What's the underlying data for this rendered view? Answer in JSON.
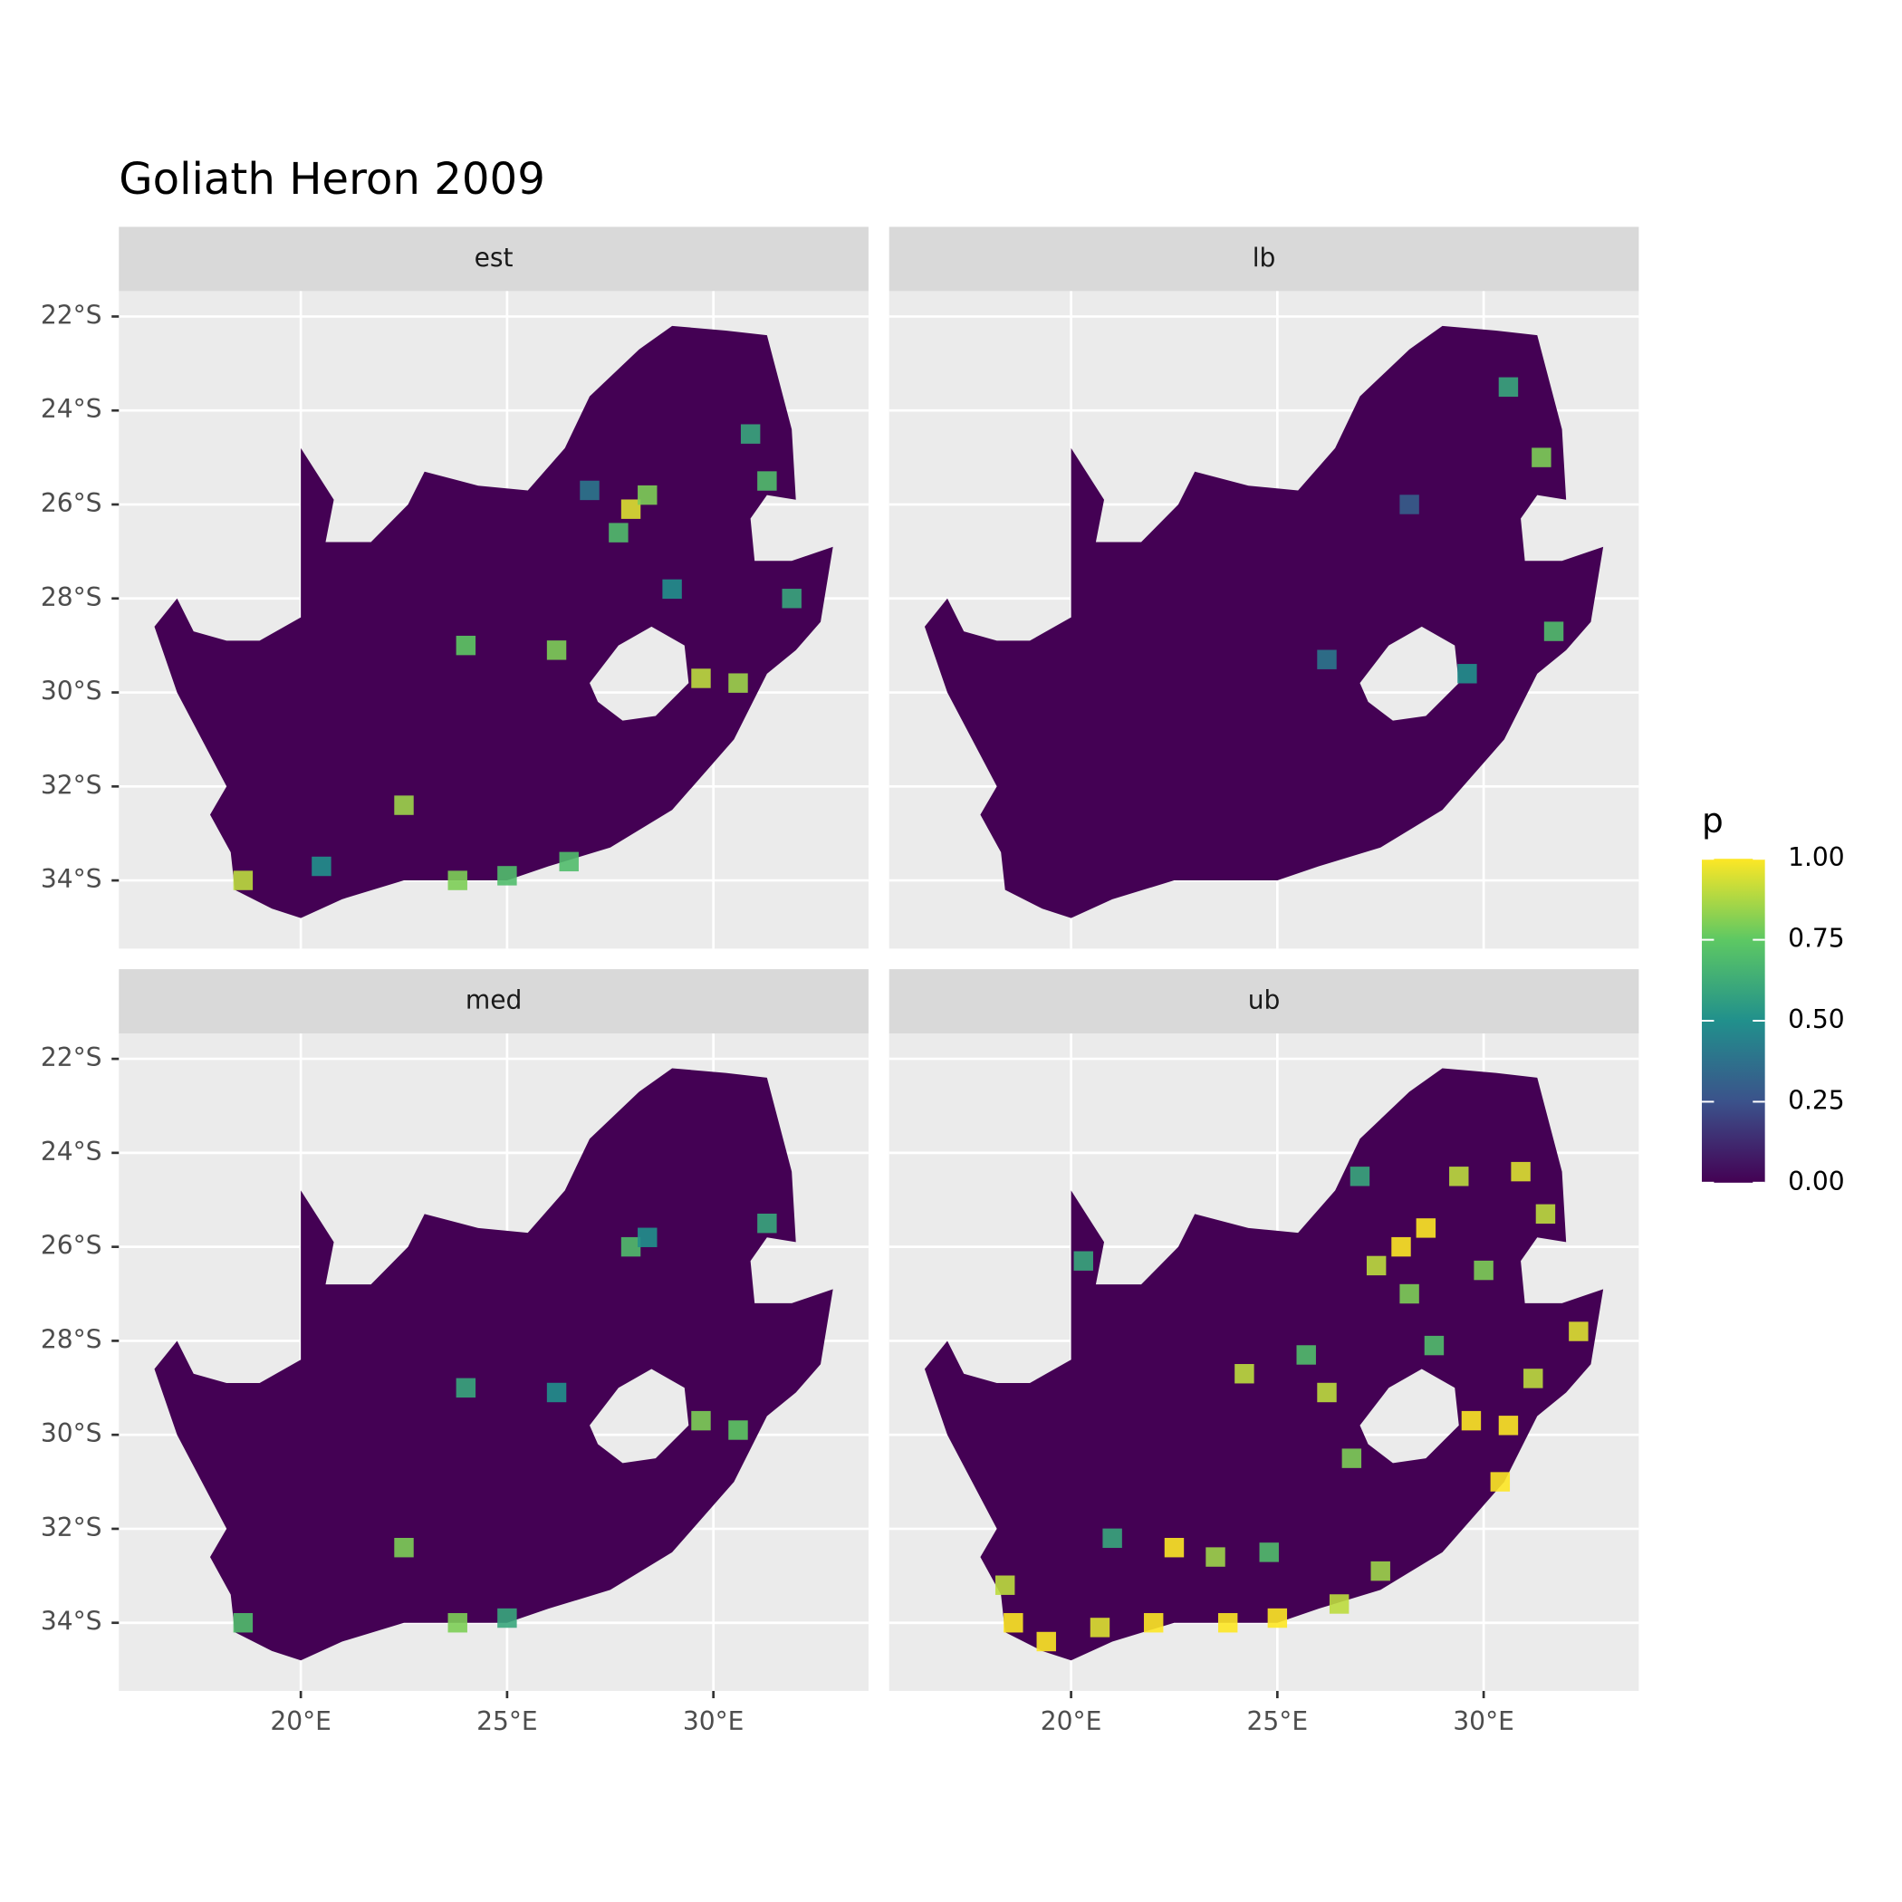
{
  "chart_data": {
    "type": "raster",
    "title": "Goliath Heron 2009",
    "xlim": [
      15.59,
      33.76
    ],
    "ylim": [
      -35.45,
      -21.46
    ],
    "xticks": [
      {
        "value": 20,
        "label": "20°E"
      },
      {
        "value": 25,
        "label": "25°E"
      },
      {
        "value": 30,
        "label": "30°E"
      }
    ],
    "yticks": [
      {
        "value": -22,
        "label": "22°S"
      },
      {
        "value": -24,
        "label": "24°S"
      },
      {
        "value": -26,
        "label": "26°S"
      },
      {
        "value": -28,
        "label": "28°S"
      },
      {
        "value": -30,
        "label": "30°S"
      },
      {
        "value": -32,
        "label": "32°S"
      },
      {
        "value": -34,
        "label": "34°S"
      }
    ],
    "grid": true,
    "facets": [
      {
        "label": "est",
        "points": [
          {
            "lon": 28.0,
            "lat": -26.1,
            "p": 0.95
          },
          {
            "lon": 28.4,
            "lat": -25.8,
            "p": 0.8
          },
          {
            "lon": 27.7,
            "lat": -26.6,
            "p": 0.7
          },
          {
            "lon": 29.7,
            "lat": -29.7,
            "p": 0.9
          },
          {
            "lon": 30.6,
            "lat": -29.8,
            "p": 0.85
          },
          {
            "lon": 26.2,
            "lat": -29.1,
            "p": 0.8
          },
          {
            "lon": 22.5,
            "lat": -32.4,
            "p": 0.85
          },
          {
            "lon": 18.6,
            "lat": -34.0,
            "p": 0.9
          },
          {
            "lon": 23.8,
            "lat": -34.0,
            "p": 0.8
          },
          {
            "lon": 31.3,
            "lat": -25.5,
            "p": 0.7
          },
          {
            "lon": 30.9,
            "lat": -24.5,
            "p": 0.6
          },
          {
            "lon": 25.0,
            "lat": -33.9,
            "p": 0.7
          },
          {
            "lon": 27.0,
            "lat": -25.7,
            "p": 0.4
          },
          {
            "lon": 24.0,
            "lat": -29.0,
            "p": 0.75
          },
          {
            "lon": 31.9,
            "lat": -28.0,
            "p": 0.6
          },
          {
            "lon": 29.0,
            "lat": -27.8,
            "p": 0.5
          },
          {
            "lon": 20.5,
            "lat": -33.7,
            "p": 0.5
          },
          {
            "lon": 26.5,
            "lat": -33.6,
            "p": 0.7
          }
        ]
      },
      {
        "label": "lb",
        "points": [
          {
            "lon": 28.2,
            "lat": -26.0,
            "p": 0.3
          },
          {
            "lon": 30.6,
            "lat": -23.5,
            "p": 0.6
          },
          {
            "lon": 31.7,
            "lat": -28.7,
            "p": 0.7
          },
          {
            "lon": 31.4,
            "lat": -25.0,
            "p": 0.8
          },
          {
            "lon": 26.2,
            "lat": -29.3,
            "p": 0.4
          },
          {
            "lon": 29.6,
            "lat": -29.6,
            "p": 0.5
          }
        ]
      },
      {
        "label": "med",
        "points": [
          {
            "lon": 28.0,
            "lat": -26.0,
            "p": 0.7
          },
          {
            "lon": 28.4,
            "lat": -25.8,
            "p": 0.5
          },
          {
            "lon": 29.7,
            "lat": -29.7,
            "p": 0.8
          },
          {
            "lon": 30.6,
            "lat": -29.9,
            "p": 0.75
          },
          {
            "lon": 26.2,
            "lat": -29.1,
            "p": 0.5
          },
          {
            "lon": 22.5,
            "lat": -32.4,
            "p": 0.8
          },
          {
            "lon": 18.6,
            "lat": -34.0,
            "p": 0.7
          },
          {
            "lon": 23.8,
            "lat": -34.0,
            "p": 0.8
          },
          {
            "lon": 31.3,
            "lat": -25.5,
            "p": 0.6
          },
          {
            "lon": 25.0,
            "lat": -33.9,
            "p": 0.6
          },
          {
            "lon": 24.0,
            "lat": -29.0,
            "p": 0.6
          }
        ]
      },
      {
        "label": "ub",
        "points": [
          {
            "lon": 28.0,
            "lat": -26.0,
            "p": 1.0
          },
          {
            "lon": 28.6,
            "lat": -25.6,
            "p": 1.0
          },
          {
            "lon": 27.4,
            "lat": -26.4,
            "p": 0.9
          },
          {
            "lon": 28.2,
            "lat": -27.0,
            "p": 0.8
          },
          {
            "lon": 29.4,
            "lat": -24.5,
            "p": 0.9
          },
          {
            "lon": 30.9,
            "lat": -24.4,
            "p": 0.95
          },
          {
            "lon": 31.5,
            "lat": -25.3,
            "p": 0.9
          },
          {
            "lon": 29.7,
            "lat": -29.7,
            "p": 1.0
          },
          {
            "lon": 30.6,
            "lat": -29.8,
            "p": 1.0
          },
          {
            "lon": 31.2,
            "lat": -28.8,
            "p": 0.9
          },
          {
            "lon": 32.3,
            "lat": -27.8,
            "p": 0.95
          },
          {
            "lon": 30.4,
            "lat": -31.0,
            "p": 1.0
          },
          {
            "lon": 26.2,
            "lat": -29.1,
            "p": 0.9
          },
          {
            "lon": 25.7,
            "lat": -28.3,
            "p": 0.7
          },
          {
            "lon": 26.8,
            "lat": -30.5,
            "p": 0.8
          },
          {
            "lon": 22.5,
            "lat": -32.4,
            "p": 1.0
          },
          {
            "lon": 23.5,
            "lat": -32.6,
            "p": 0.85
          },
          {
            "lon": 18.6,
            "lat": -34.0,
            "p": 1.0
          },
          {
            "lon": 18.4,
            "lat": -33.2,
            "p": 0.9
          },
          {
            "lon": 19.4,
            "lat": -34.4,
            "p": 1.0
          },
          {
            "lon": 20.7,
            "lat": -34.1,
            "p": 0.95
          },
          {
            "lon": 22.0,
            "lat": -34.0,
            "p": 1.0
          },
          {
            "lon": 23.8,
            "lat": -34.0,
            "p": 1.0
          },
          {
            "lon": 25.0,
            "lat": -33.9,
            "p": 1.0
          },
          {
            "lon": 26.5,
            "lat": -33.6,
            "p": 0.9
          },
          {
            "lon": 27.5,
            "lat": -32.9,
            "p": 0.85
          },
          {
            "lon": 24.8,
            "lat": -32.5,
            "p": 0.7
          },
          {
            "lon": 21.0,
            "lat": -32.2,
            "p": 0.6
          },
          {
            "lon": 28.8,
            "lat": -28.1,
            "p": 0.7
          },
          {
            "lon": 27.0,
            "lat": -24.5,
            "p": 0.6
          },
          {
            "lon": 30.0,
            "lat": -26.5,
            "p": 0.8
          },
          {
            "lon": 20.3,
            "lat": -26.3,
            "p": 0.6
          },
          {
            "lon": 24.2,
            "lat": -28.7,
            "p": 0.9
          }
        ]
      }
    ],
    "legend": {
      "title": "p",
      "lim": [
        0,
        1
      ],
      "ticks": [
        {
          "value": 0,
          "label": "0.00"
        },
        {
          "value": 0.25,
          "label": "0.25"
        },
        {
          "value": 0.5,
          "label": "0.50"
        },
        {
          "value": 0.75,
          "label": "0.75"
        },
        {
          "value": 1,
          "label": "1.00"
        }
      ],
      "colors": [
        "#440154",
        "#3b528b",
        "#21908c",
        "#5dc863",
        "#fde725"
      ]
    }
  }
}
